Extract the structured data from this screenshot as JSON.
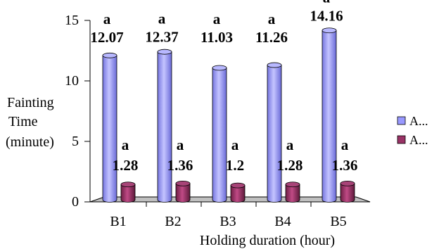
{
  "chart_data": {
    "type": "bar",
    "categories": [
      "B1",
      "B2",
      "B3",
      "B4",
      "B5"
    ],
    "series": [
      {
        "name": "A...",
        "values": [
          12.07,
          12.37,
          11.03,
          11.26,
          14.16
        ],
        "value_labels": [
          "12.07",
          "12.37",
          "11.03",
          "11.26",
          "14.16"
        ],
        "letters": [
          "a",
          "a",
          "a",
          "a",
          "a"
        ],
        "color": "#9999ff"
      },
      {
        "name": "A...",
        "values": [
          1.28,
          1.36,
          1.2,
          1.28,
          1.36
        ],
        "value_labels": [
          "1.28",
          "1.36",
          "1.2",
          "1.28",
          "1.36"
        ],
        "letters": [
          "a",
          "a",
          "a",
          "a",
          "a"
        ],
        "color": "#993366"
      }
    ],
    "xlabel": "Holding duration (hour)",
    "ylabel_lines": [
      "Fainting",
      "Time",
      "(minute)"
    ],
    "ylim": [
      0,
      15
    ],
    "yticks": [
      "0",
      "5",
      "10",
      "15"
    ],
    "grid": false,
    "legend_position": "right",
    "bar_style": "3d-cylinder"
  }
}
